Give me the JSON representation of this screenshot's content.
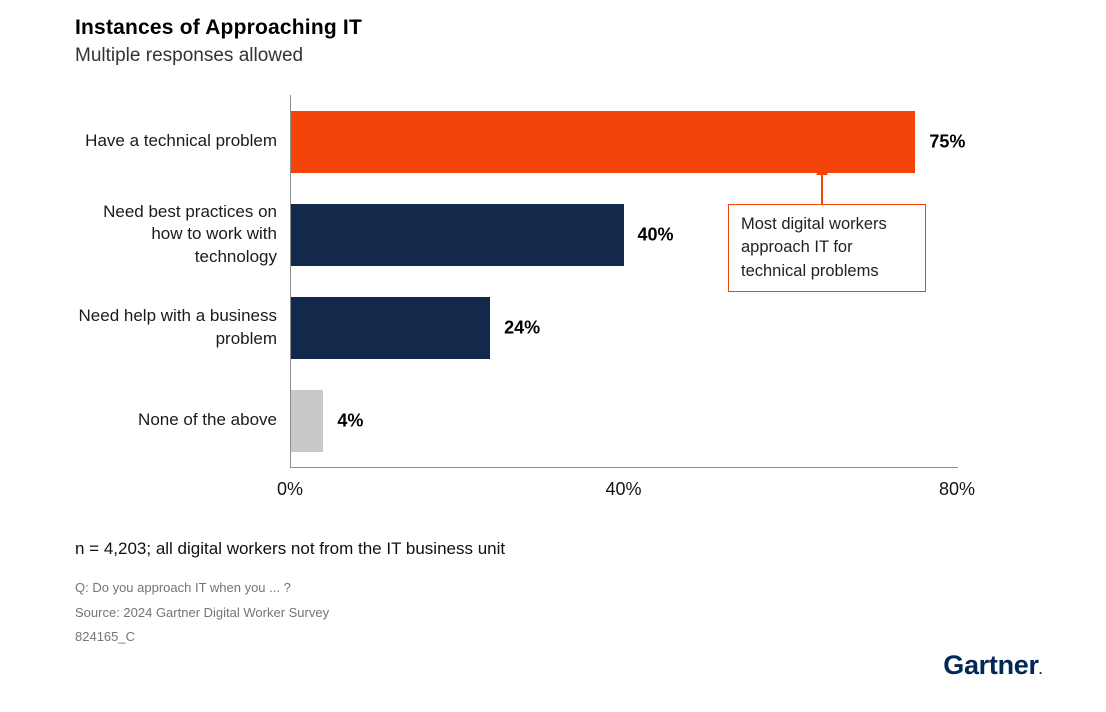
{
  "title": "Instances of Approaching IT",
  "subtitle": "Multiple responses allowed",
  "chart_data": {
    "type": "bar",
    "orientation": "horizontal",
    "title": "Instances of Approaching IT",
    "subtitle": "Multiple responses allowed",
    "categories": [
      "Have a technical problem",
      "Need best practices on how to work with technology",
      "Need help with a business problem",
      "None of the above"
    ],
    "values": [
      75,
      40,
      24,
      4
    ],
    "value_labels": [
      "75%",
      "40%",
      "24%",
      "4%"
    ],
    "bar_colors": [
      "#f4440a",
      "#13294b",
      "#13294b",
      "#c9c9c9"
    ],
    "xlim": [
      0,
      80
    ],
    "x_ticks": [
      "0%",
      "40%",
      "80%"
    ],
    "grid": false,
    "legend": "none",
    "annotation": "Most digital workers approach IT for technical problems"
  },
  "note": "n = 4,203; all digital workers not from the IT business unit",
  "footnotes": [
    "Q: Do you approach IT when you ... ?",
    "Source: 2024 Gartner Digital Worker Survey",
    "824165_C"
  ],
  "logo": {
    "text": "Gartner",
    "mark": "."
  },
  "colors": {
    "accent_orange": "#f4440a",
    "navy": "#13294b",
    "light_gray_bar": "#c9c9c9",
    "axis_gray": "#8f8f8f",
    "footnote_gray": "#757575",
    "logo_navy": "#002856"
  }
}
